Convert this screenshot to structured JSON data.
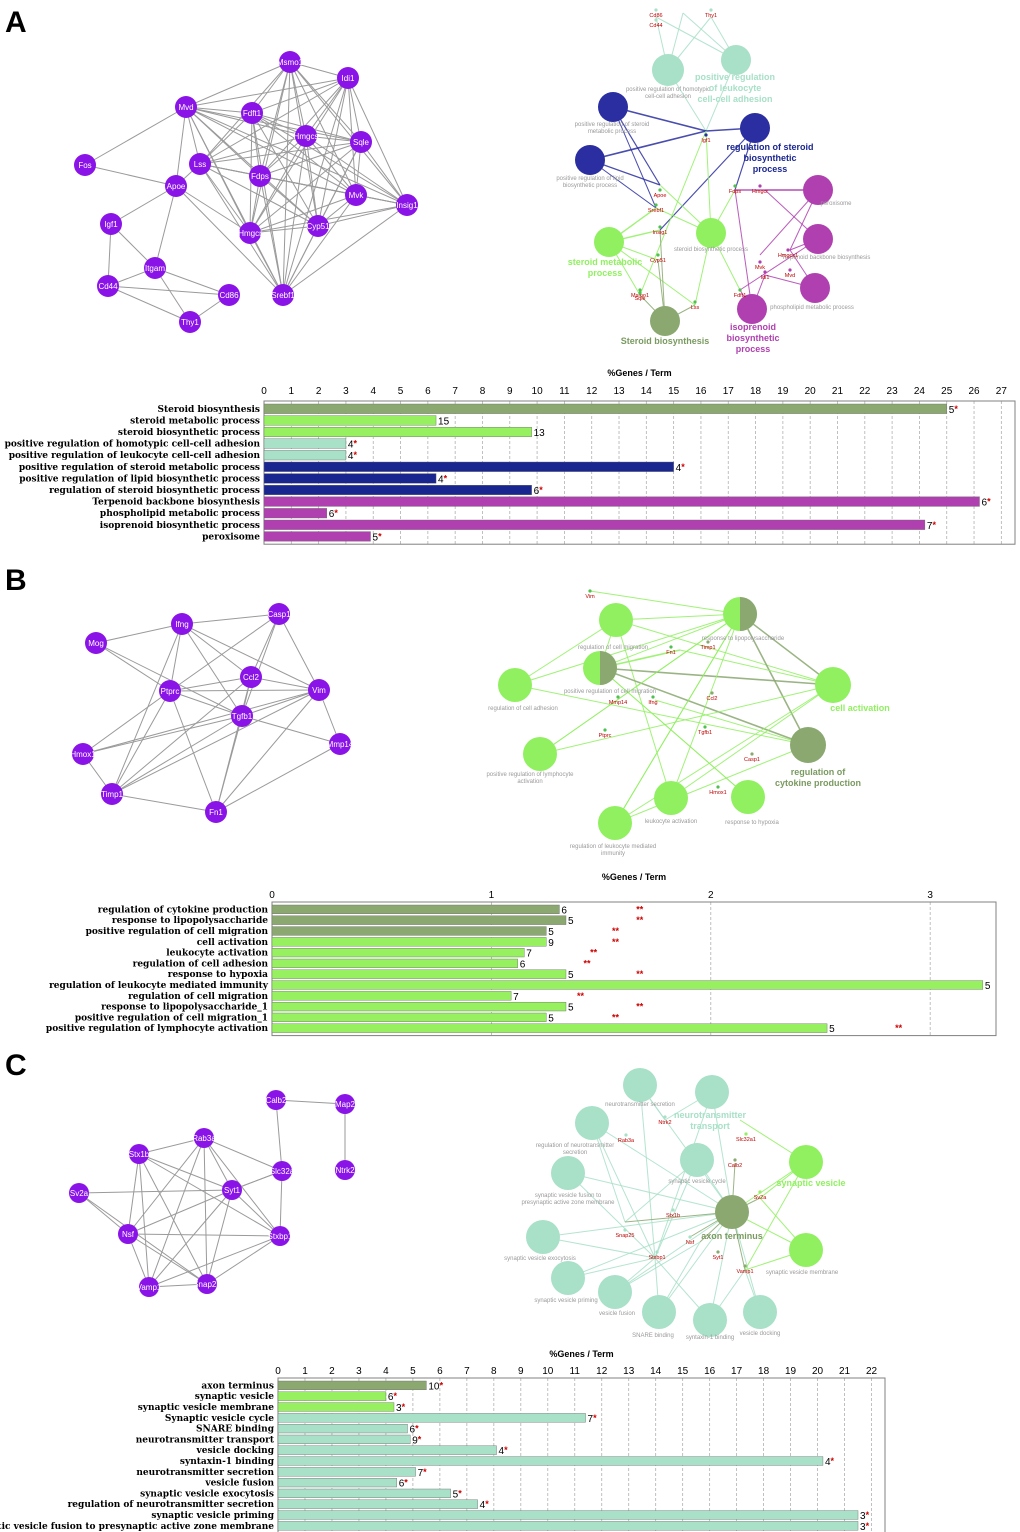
{
  "panels": [
    {
      "letter": "A",
      "ppi": {
        "nodes": [
          "Msmo1",
          "Idi1",
          "Mvd",
          "Fdft1",
          "Hmgcs",
          "Sqle",
          "Fos",
          "Lss",
          "Apoe",
          "Fdps",
          "Mvk",
          "Insig1",
          "Igf1",
          "Hmgcr",
          "Cyp51",
          "Itgam",
          "Cd44",
          "Cd86",
          "Srebf1",
          "Thy1"
        ]
      },
      "network": {
        "terms": [
          "positive regulation of homotypic cell-cell adhesion",
          "positive regulation of steroid metabolic process",
          "positive regulation of lipid biosynthetic process",
          "steroid biosynthetic process",
          "peroxisome",
          "Terpenoid backbone biosynthesis",
          "phospholipid metabolic process"
        ],
        "hubs": [
          "positive regulation of leukocyte cell-cell adhesion",
          "regulation of steroid biosynthetic process",
          "steroid metabolic process",
          "Steroid biosynthesis",
          "isoprenoid biosynthetic process"
        ],
        "genes": [
          "Cd86",
          "Thy1",
          "Cd44",
          "Igf1",
          "Fdps",
          "Hmgcr",
          "Apoe",
          "Mvk",
          "Srebf1",
          "Insig1",
          "Cyp51",
          "Msmo1",
          "Hmgcs1",
          "Mvd",
          "Idi1",
          "Fdft1",
          "Sqle",
          "Lss"
        ]
      }
    },
    {
      "letter": "B",
      "ppi": {
        "nodes": [
          "Ifng",
          "Casp1",
          "Mog",
          "Ccl2",
          "Ptprc",
          "Vim",
          "Tgfb1",
          "Hmox1",
          "Mmp14",
          "Timp1",
          "Fn1"
        ]
      },
      "network": {
        "terms": [
          "regulation of cell migration",
          "response to lipopolysaccharide",
          "positive regulation of cell migration",
          "regulation of cell adhesion",
          "positive regulation of lymphocyte activation",
          "leukocyte activation",
          "regulation of leukocyte mediated immunity",
          "response to hypoxia"
        ],
        "hubs": [
          "cell activation",
          "regulation of cytokine production"
        ],
        "genes": [
          "Vim",
          "Timp1",
          "Fn1",
          "Ifng",
          "Ccl2",
          "Mmp14",
          "Tgfb1",
          "Casp1",
          "Ptprc",
          "Hmox1"
        ]
      }
    },
    {
      "letter": "C",
      "ppi": {
        "nodes": [
          "Calb2",
          "Map2",
          "Rab3a",
          "Stx1b",
          "Slc32a",
          "Ntrk2",
          "Syt1",
          "Sv2a",
          "Nsf",
          "Stxbp1",
          "Vamp1",
          "Snap25"
        ]
      },
      "network": {
        "terms": [
          "neurotransmitter secretion",
          "regulation of neurotransmitter secretion",
          "synaptic vesicle cycle",
          "synaptic vesicle fusion to presynaptic active zone membrane",
          "synaptic vesicle exocytosis",
          "synaptic vesicle membrane",
          "synaptic vesicle priming",
          "vesicle fusion",
          "SNARE binding",
          "syntaxin-1 binding",
          "vesicle docking"
        ],
        "hubs": [
          "neurotransmitter transport",
          "synaptic vesicle",
          "axon terminus"
        ],
        "genes": [
          "Ntrk2",
          "Slc32a1",
          "Calb2",
          "Rab3a",
          "Sv2a",
          "Stx1b",
          "Snap25",
          "Stxbp1",
          "Nsf",
          "Syt1",
          "Vamp1"
        ]
      }
    }
  ],
  "chart_data": [
    {
      "type": "bar",
      "orientation": "horizontal",
      "xlabel": "%Genes / Term",
      "xlim": [
        0,
        27.5
      ],
      "ticks": [
        0,
        1,
        2,
        3,
        4,
        5,
        6,
        7,
        8,
        9,
        10,
        11,
        12,
        13,
        14,
        15,
        16,
        17,
        18,
        19,
        20,
        21,
        22,
        23,
        24,
        25,
        26,
        27
      ],
      "grid": true,
      "categories": [
        "Steroid biosynthesis",
        "steroid metabolic process",
        "steroid biosynthetic process",
        "positive regulation of homotypic cell-cell adhesion",
        "positive regulation of leukocyte cell-cell adhesion",
        "positive regulation of steroid metabolic process",
        "positive regulation of lipid biosynthetic process",
        "regulation of steroid biosynthetic process",
        "Terpenoid backbone biosynthesis",
        "phospholipid metabolic process",
        "isoprenoid biosynthetic process",
        "peroxisome"
      ],
      "values": [
        25.0,
        6.3,
        9.8,
        3.0,
        3.0,
        15.0,
        6.3,
        9.8,
        26.2,
        2.3,
        24.2,
        3.9
      ],
      "counts": [
        "5",
        "15",
        "13",
        "4",
        "4",
        "4",
        "4",
        "6",
        "6",
        "6",
        "7",
        "5"
      ],
      "stars": [
        "*",
        "",
        "",
        "*",
        "*",
        "*",
        "*",
        "*",
        "*",
        "*",
        "*",
        "*"
      ],
      "colors": [
        "#8aa870",
        "#96f060",
        "#96f060",
        "#a8e0c8",
        "#a8e0c8",
        "#1a2690",
        "#1a2690",
        "#1a2690",
        "#b040b0",
        "#b040b0",
        "#b040b0",
        "#b040b0"
      ]
    },
    {
      "type": "bar",
      "orientation": "horizontal",
      "xlabel": "%Genes / Term",
      "xlim": [
        0,
        3.3
      ],
      "ticks": [
        0,
        1,
        2,
        3
      ],
      "grid": true,
      "categories": [
        "regulation of cytokine production",
        "response to lipopolysaccharide",
        "positive regulation of cell migration",
        "cell activation",
        "leukocyte activation",
        "regulation of cell adhesion",
        "response to hypoxia",
        "regulation of leukocyte mediated immunity",
        "regulation of cell migration",
        "response to lipopolysaccharide_1",
        "positive regulation of cell migration_1",
        "positive regulation of lymphocyte activation"
      ],
      "values": [
        1.31,
        1.34,
        1.25,
        1.25,
        1.15,
        1.12,
        1.34,
        3.24,
        1.09,
        1.34,
        1.25,
        2.53
      ],
      "counts": [
        "6",
        "5",
        "5",
        "9",
        "7",
        "6",
        "5",
        "5",
        "7",
        "5",
        "5",
        "5"
      ],
      "stars": [
        "**",
        "**",
        "**",
        "**",
        "**",
        "**",
        "**",
        "",
        "**",
        "**",
        "**",
        "**"
      ],
      "star_x": [
        1.66,
        1.66,
        1.55,
        1.55,
        1.45,
        1.42,
        1.66,
        null,
        1.39,
        1.66,
        1.55,
        2.84
      ],
      "colors": [
        "#8aa870",
        "#8aa870",
        "#8aa870",
        "#96f060",
        "#96f060",
        "#96f060",
        "#96f060",
        "#96f060",
        "#96f060",
        "#96f060",
        "#96f060",
        "#96f060"
      ]
    },
    {
      "type": "bar",
      "orientation": "horizontal",
      "xlabel": "%Genes / Term",
      "xlim": [
        0,
        22.5
      ],
      "ticks": [
        0,
        1,
        2,
        3,
        4,
        5,
        6,
        7,
        8,
        9,
        10,
        11,
        12,
        13,
        14,
        15,
        16,
        17,
        18,
        19,
        20,
        21,
        22
      ],
      "grid": true,
      "categories": [
        "axon terminus",
        "synaptic vesicle",
        "synaptic vesicle membrane",
        "Synaptic vesicle cycle",
        "SNARE binding",
        "neurotransmitter transport",
        "vesicle docking",
        "syntaxin-1 binding",
        "neurotransmitter secretion",
        "vesicle fusion",
        "synaptic vesicle exocytosis",
        "regulation of neurotransmitter secretion",
        "synaptic vesicle priming",
        "synaptic vesicle fusion to presynaptic active zone membrane"
      ],
      "values": [
        5.5,
        4.0,
        4.3,
        11.4,
        4.8,
        4.9,
        8.1,
        20.2,
        5.1,
        4.4,
        6.4,
        7.4,
        21.5,
        21.5
      ],
      "counts": [
        "10",
        "6",
        "3",
        "7",
        "6",
        "9",
        "4",
        "4",
        "7",
        "6",
        "5",
        "4",
        "3",
        "3"
      ],
      "stars": [
        "*",
        "*",
        "*",
        "*",
        "*",
        "*",
        "*",
        "*",
        "*",
        "*",
        "*",
        "*",
        "*",
        "*"
      ],
      "colors": [
        "#8aa870",
        "#96f060",
        "#96f060",
        "#a8e0c8",
        "#a8e0c8",
        "#a8e0c8",
        "#a8e0c8",
        "#a8e0c8",
        "#a8e0c8",
        "#a8e0c8",
        "#a8e0c8",
        "#a8e0c8",
        "#a8e0c8",
        "#a8e0c8"
      ]
    }
  ]
}
